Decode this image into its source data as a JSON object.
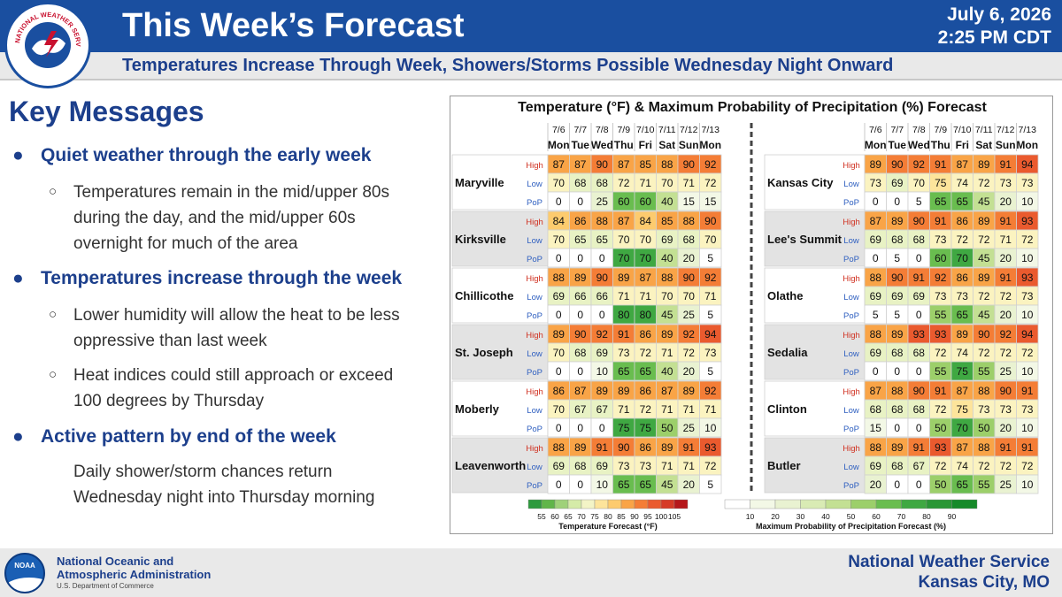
{
  "header": {
    "title": "This Week’s Forecast",
    "date": "July 6, 2026",
    "time": "2:25 PM CDT",
    "subtitle": "Temperatures Increase Through Week, Showers/Storms Possible Wednesday Night Onward",
    "seal_text": "NATIONAL WEATHER SERVICE"
  },
  "key_messages": {
    "heading": "Key Messages",
    "b1": "Quiet weather through the early week",
    "s1a": "Temperatures remain in the mid/upper 80s",
    "s1b": "during the day, and the mid/upper 60s",
    "s1c": "overnight for much of the area",
    "b2": "Temperatures increase through the week",
    "s2a": "Lower humidity will allow the heat to be less",
    "s2b": "oppressive than last week",
    "s2c": "Heat indices could still approach or exceed",
    "s2d": "100 degrees by Thursday",
    "b3": "Active pattern by end of the week",
    "s3a": "Daily shower/storm chances return",
    "s3b": "Wednesday night into Thursday morning"
  },
  "forecast_table": {
    "title": "Temperature (°F) & Maximum Probability of Precipitation (%) Forecast",
    "dates": [
      "7/6",
      "7/7",
      "7/8",
      "7/9",
      "7/10",
      "7/11",
      "7/12",
      "7/13"
    ],
    "days": [
      "Mon",
      "Tue",
      "Wed",
      "Thu",
      "Fri",
      "Sat",
      "Sun",
      "Mon"
    ],
    "row_labels": [
      "High",
      "Low",
      "PoP"
    ],
    "left": [
      {
        "city": "Maryville",
        "high": [
          87,
          87,
          90,
          87,
          85,
          88,
          90,
          92
        ],
        "low": [
          70,
          68,
          68,
          72,
          71,
          70,
          71,
          72
        ],
        "pop": [
          0,
          0,
          25,
          60,
          60,
          40,
          15,
          15
        ]
      },
      {
        "city": "Kirksville",
        "high": [
          84,
          86,
          88,
          87,
          84,
          85,
          88,
          90
        ],
        "low": [
          70,
          65,
          65,
          70,
          70,
          69,
          68,
          70
        ],
        "pop": [
          0,
          0,
          0,
          70,
          70,
          40,
          20,
          5
        ]
      },
      {
        "city": "Chillicothe",
        "high": [
          88,
          89,
          90,
          89,
          87,
          88,
          90,
          92
        ],
        "low": [
          69,
          66,
          66,
          71,
          71,
          70,
          70,
          71
        ],
        "pop": [
          0,
          0,
          0,
          80,
          80,
          45,
          25,
          5
        ]
      },
      {
        "city": "St. Joseph",
        "high": [
          89,
          90,
          92,
          91,
          86,
          89,
          92,
          94
        ],
        "low": [
          70,
          68,
          69,
          73,
          72,
          71,
          72,
          73
        ],
        "pop": [
          0,
          0,
          10,
          65,
          65,
          40,
          20,
          5
        ]
      },
      {
        "city": "Moberly",
        "high": [
          86,
          87,
          89,
          89,
          86,
          87,
          89,
          92
        ],
        "low": [
          70,
          67,
          67,
          71,
          72,
          71,
          71,
          71
        ],
        "pop": [
          0,
          0,
          0,
          75,
          75,
          50,
          25,
          10
        ]
      },
      {
        "city": "Leavenworth",
        "high": [
          88,
          89,
          91,
          90,
          86,
          89,
          91,
          93
        ],
        "low": [
          69,
          68,
          69,
          73,
          73,
          71,
          71,
          72
        ],
        "pop": [
          0,
          0,
          10,
          65,
          65,
          45,
          20,
          5
        ]
      }
    ],
    "right": [
      {
        "city": "Kansas City",
        "high": [
          89,
          90,
          92,
          91,
          87,
          89,
          91,
          94
        ],
        "low": [
          73,
          69,
          70,
          75,
          74,
          72,
          73,
          73
        ],
        "pop": [
          0,
          0,
          5,
          65,
          65,
          45,
          20,
          10
        ]
      },
      {
        "city": "Lee's Summit",
        "high": [
          87,
          89,
          90,
          91,
          86,
          89,
          91,
          93
        ],
        "low": [
          69,
          68,
          68,
          73,
          72,
          72,
          71,
          72
        ],
        "pop": [
          0,
          5,
          0,
          60,
          70,
          45,
          20,
          10
        ]
      },
      {
        "city": "Olathe",
        "high": [
          88,
          90,
          91,
          92,
          86,
          89,
          91,
          93
        ],
        "low": [
          69,
          69,
          69,
          73,
          73,
          72,
          72,
          73
        ],
        "pop": [
          5,
          5,
          0,
          55,
          65,
          45,
          20,
          10
        ]
      },
      {
        "city": "Sedalia",
        "high": [
          88,
          89,
          93,
          93,
          89,
          90,
          92,
          94
        ],
        "low": [
          69,
          68,
          68,
          72,
          74,
          72,
          72,
          72
        ],
        "pop": [
          0,
          0,
          0,
          55,
          75,
          55,
          25,
          10
        ]
      },
      {
        "city": "Clinton",
        "high": [
          87,
          88,
          90,
          91,
          87,
          88,
          90,
          91
        ],
        "low": [
          68,
          68,
          68,
          72,
          75,
          73,
          73,
          73
        ],
        "pop": [
          15,
          0,
          0,
          50,
          70,
          50,
          20,
          10
        ]
      },
      {
        "city": "Butler",
        "high": [
          88,
          89,
          91,
          93,
          87,
          88,
          91,
          91
        ],
        "low": [
          69,
          68,
          67,
          72,
          74,
          72,
          72,
          72
        ],
        "pop": [
          20,
          0,
          0,
          50,
          65,
          55,
          25,
          10
        ]
      }
    ],
    "temp_legend": {
      "ticks": [
        "55",
        "60",
        "65",
        "70",
        "75",
        "80",
        "85",
        "90",
        "95",
        "100",
        "105"
      ],
      "label": "Temperature Forecast (°F)"
    },
    "pop_legend": {
      "ticks": [
        "10",
        "20",
        "30",
        "40",
        "50",
        "60",
        "70",
        "80",
        "90"
      ],
      "label": "Maximum Probability of Precipitation Forecast (%)"
    }
  },
  "footer": {
    "noaa_line1": "National Oceanic and",
    "noaa_line2": "Atmospheric Administration",
    "noaa_line3": "U.S. Department of Commerce",
    "noaa_logo_text": "NOAA",
    "nws_line1": "National Weather Service",
    "nws_line2": "Kansas City, MO"
  }
}
